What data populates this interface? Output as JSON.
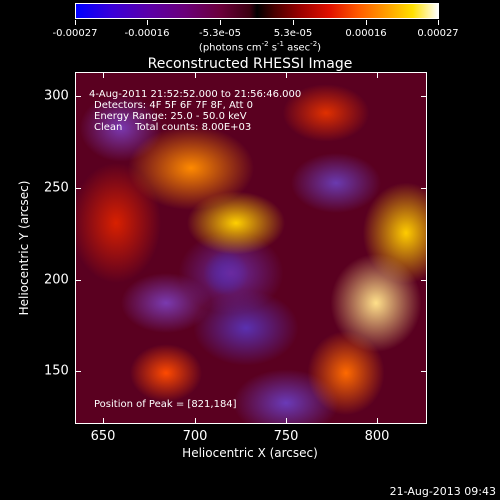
{
  "colorbar": {
    "tick_labels": [
      "-0.00027",
      "-0.00016",
      "-5.3e-05",
      "5.3e-05",
      "0.00016",
      "0.00027"
    ],
    "unit_parts": [
      "(photons cm",
      "-2",
      " s",
      "-1",
      " asec",
      "-2",
      ")"
    ]
  },
  "title": "Reconstructed RHESSI Image",
  "annotation": {
    "line1": "4-Aug-2011 21:52:52.000 to 21:56:46.000",
    "line2": "Detectors: 4F 5F 6F 7F 8F, Att 0",
    "line3": "Energy Range: 25.0 - 50.0 keV",
    "line4": "Clean    Total counts: 8.00E+03",
    "peak": "Position of Peak = [821,184]"
  },
  "axes": {
    "x_title": "Heliocentric X (arcsec)",
    "y_title": "Heliocentric Y (arcsec)",
    "x_ticks": [
      "650",
      "700",
      "750",
      "800"
    ],
    "y_ticks": [
      "300",
      "250",
      "200",
      "150"
    ]
  },
  "footer": "21-Aug-2013 09:43",
  "colors": {
    "background": "#000000",
    "foreground": "#ffffff"
  }
}
